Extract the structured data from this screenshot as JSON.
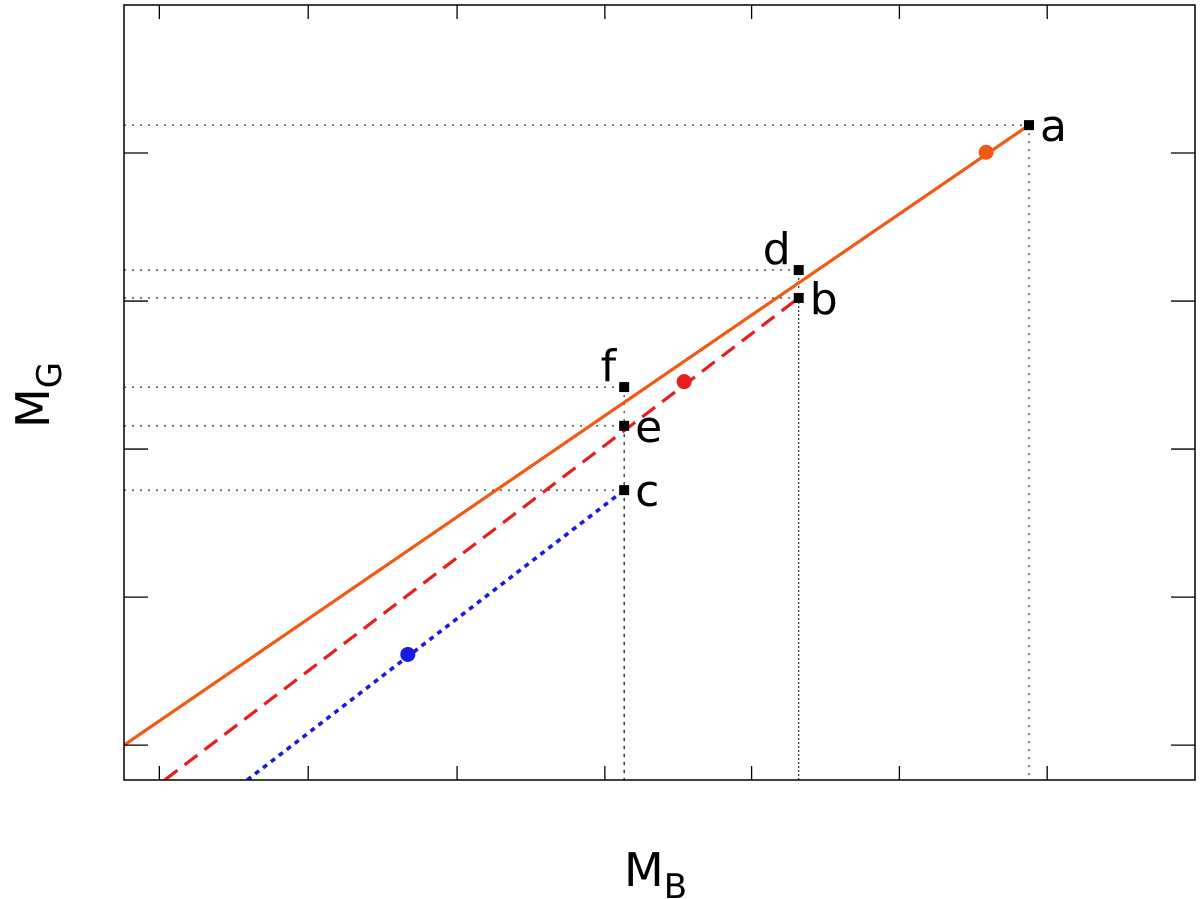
{
  "chart_data": {
    "type": "line",
    "xlabel": {
      "main": "M",
      "sub": "B"
    },
    "ylabel": {
      "main": "M",
      "sub": "G"
    },
    "xlim": [
      0,
      1
    ],
    "ylim": [
      0,
      1
    ],
    "grid": false,
    "series": [
      {
        "style": "solid",
        "color": "#f05a14",
        "x": [
          0.0,
          0.845
        ],
        "y": [
          0.045,
          0.845
        ],
        "marker": {
          "x": 0.805,
          "y": 0.81,
          "color": "#f05a14"
        }
      },
      {
        "style": "dashed",
        "color": "#e51e1e",
        "x": [
          0.038,
          0.63
        ],
        "y": [
          0.0,
          0.622
        ],
        "marker": {
          "x": 0.523,
          "y": 0.514,
          "color": "#e51e1e"
        }
      },
      {
        "style": "dotted",
        "color": "#1a1ae6",
        "x": [
          0.115,
          0.467
        ],
        "y": [
          0.0,
          0.374
        ],
        "marker": {
          "x": 0.265,
          "y": 0.162,
          "color": "#1a1ae6"
        }
      }
    ],
    "points": [
      {
        "label": "a",
        "x": 0.845,
        "y": 0.845,
        "label_side": "right"
      },
      {
        "label": "b",
        "x": 0.63,
        "y": 0.622,
        "label_side": "right"
      },
      {
        "label": "c",
        "x": 0.467,
        "y": 0.374,
        "label_side": "right"
      },
      {
        "label": "d",
        "x": 0.63,
        "y": 0.658,
        "label_side": "left-above"
      },
      {
        "label": "e",
        "x": 0.467,
        "y": 0.457,
        "label_side": "right"
      },
      {
        "label": "f",
        "x": 0.467,
        "y": 0.507,
        "label_side": "left-above"
      }
    ],
    "x_ticks": [
      0.033,
      0.172,
      0.311,
      0.449,
      0.586,
      0.724,
      0.862
    ],
    "y_ticks": [
      0.045,
      0.236,
      0.427,
      0.618,
      0.809
    ]
  }
}
